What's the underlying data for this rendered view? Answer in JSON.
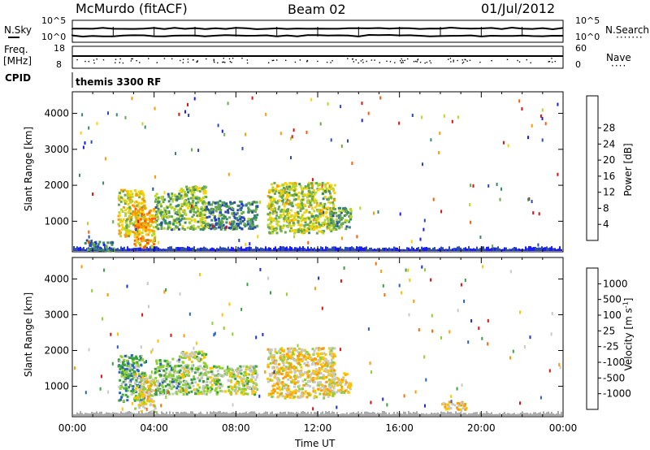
{
  "header": {
    "station": "McMurdo (fitACF)",
    "beam": "Beam 02",
    "date": "01/Jul/2012"
  },
  "noise_panel": {
    "left_label": "N.Sky",
    "right_label": "N.Search",
    "left_ticks": [
      "10^5",
      "10^0"
    ],
    "right_ticks": [
      "10^5",
      "10^0"
    ]
  },
  "freq_panel": {
    "left_label_1": "Freq.",
    "left_label_2": "[MHz]",
    "right_label": "Nave",
    "left_ticks": [
      "18",
      "8"
    ],
    "right_ticks": [
      "60",
      "0"
    ]
  },
  "cpid_panel": {
    "left_label": "CPID",
    "text": "themis 3300 RF"
  },
  "colors": {
    "power": [
      "#1a1aff",
      "#2a4ab0",
      "#3a8a6a",
      "#6aa84f",
      "#b8d62a",
      "#ffd000",
      "#ff9a00",
      "#ff5a00",
      "#e01010"
    ],
    "velocity": [
      "#e01010",
      "#ff6a00",
      "#ff9a00",
      "#ffc400",
      "#c8c8c8",
      "#90d030",
      "#3aa040",
      "#2a60c0",
      "#1a30d0"
    ],
    "ground_scatter": "#aaaaaa"
  },
  "chart_data": [
    {
      "type": "heatmap",
      "ylabel": "Slant Range [km]",
      "xlabel": "",
      "x_ticks": [],
      "y_ticks": [
        "1000",
        "2000",
        "3000",
        "4000"
      ],
      "ylim": [
        150,
        4600
      ],
      "xlim_hours": [
        0,
        24
      ],
      "colorbar": {
        "label": "Power [dB]",
        "ticks": [
          "4",
          "8",
          "12",
          "16",
          "20",
          "24",
          "28"
        ],
        "range": [
          0,
          32
        ]
      },
      "echo_regions": [
        {
          "t0": 2.2,
          "t1": 3.5,
          "r0": 600,
          "r1": 1900,
          "value": 18
        },
        {
          "t0": 3.0,
          "t1": 4.0,
          "r0": 300,
          "r1": 1400,
          "value": 22
        },
        {
          "t0": 4.0,
          "t1": 5.2,
          "r0": 800,
          "r1": 1800,
          "value": 12
        },
        {
          "t0": 5.2,
          "t1": 6.5,
          "r0": 800,
          "r1": 2000,
          "value": 14
        },
        {
          "t0": 6.5,
          "t1": 9.0,
          "r0": 800,
          "r1": 1600,
          "value": 9
        },
        {
          "t0": 9.5,
          "t1": 12.8,
          "r0": 700,
          "r1": 2100,
          "value": 16
        },
        {
          "t0": 12.5,
          "t1": 13.6,
          "r0": 800,
          "r1": 1400,
          "value": 12
        },
        {
          "t0": 0.5,
          "t1": 2.0,
          "r0": 200,
          "r1": 500,
          "value": 8
        }
      ]
    },
    {
      "type": "heatmap",
      "ylabel": "Slant Range [km]",
      "xlabel": "Time UT",
      "x_ticks": [
        "00:00",
        "04:00",
        "08:00",
        "12:00",
        "16:00",
        "20:00",
        "00:00"
      ],
      "y_ticks": [
        "1000",
        "2000",
        "3000",
        "4000"
      ],
      "ylim": [
        150,
        4600
      ],
      "xlim_hours": [
        0,
        24
      ],
      "colorbar": {
        "label": "Velocity [m s",
        "label_sup": "-1",
        "label_end": "]",
        "ticks": [
          "-1000",
          "-500",
          "-100",
          "-25",
          "25",
          "100",
          "500",
          "1000"
        ],
        "range": [
          -1500,
          1500
        ]
      },
      "echo_regions": [
        {
          "t0": 2.2,
          "t1": 3.5,
          "r0": 600,
          "r1": 1900,
          "value": 600
        },
        {
          "t0": 3.0,
          "t1": 4.0,
          "r0": 300,
          "r1": 1400,
          "value": -150
        },
        {
          "t0": 4.0,
          "t1": 5.2,
          "r0": 800,
          "r1": 1800,
          "value": 400
        },
        {
          "t0": 5.2,
          "t1": 6.5,
          "r0": 800,
          "r1": 2000,
          "value": 200
        },
        {
          "t0": 6.5,
          "t1": 9.0,
          "r0": 800,
          "r1": 1600,
          "value": 150
        },
        {
          "t0": 9.5,
          "t1": 12.8,
          "r0": 700,
          "r1": 2100,
          "value": -200
        },
        {
          "t0": 12.5,
          "t1": 13.6,
          "r0": 800,
          "r1": 1400,
          "value": -150
        },
        {
          "t0": 18.0,
          "t1": 19.3,
          "r0": 350,
          "r1": 600,
          "value": -300
        }
      ]
    }
  ]
}
